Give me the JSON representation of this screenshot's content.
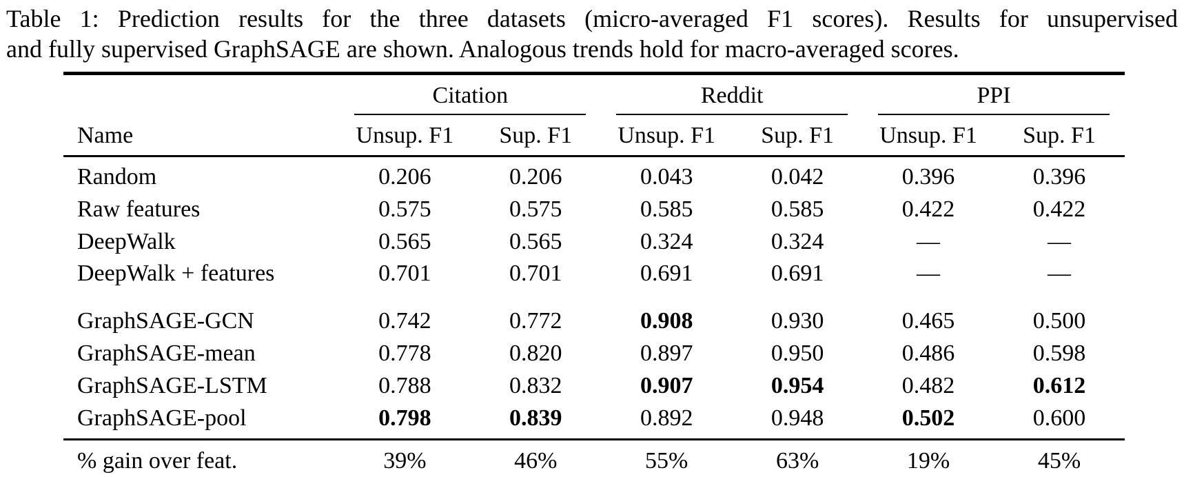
{
  "caption": {
    "line1": "Table 1: Prediction results for the three datasets (micro-averaged F1 scores). Results for unsupervised",
    "line2": "and fully supervised GraphSAGE are shown. Analogous trends hold for macro-averaged scores."
  },
  "table": {
    "name_header": "Name",
    "groups": [
      {
        "label": "Citation",
        "columns": [
          "Unsup. F1",
          "Sup. F1"
        ]
      },
      {
        "label": "Reddit",
        "columns": [
          "Unsup. F1",
          "Sup. F1"
        ]
      },
      {
        "label": "PPI",
        "columns": [
          "Unsup. F1",
          "Sup. F1"
        ]
      }
    ],
    "rows": [
      {
        "name": "Random",
        "values": [
          "0.206",
          "0.206",
          "0.043",
          "0.042",
          "0.396",
          "0.396"
        ],
        "bold": [
          false,
          false,
          false,
          false,
          false,
          false
        ]
      },
      {
        "name": "Raw features",
        "values": [
          "0.575",
          "0.575",
          "0.585",
          "0.585",
          "0.422",
          "0.422"
        ],
        "bold": [
          false,
          false,
          false,
          false,
          false,
          false
        ]
      },
      {
        "name": "DeepWalk",
        "values": [
          "0.565",
          "0.565",
          "0.324",
          "0.324",
          "—",
          "—"
        ],
        "bold": [
          false,
          false,
          false,
          false,
          false,
          false
        ]
      },
      {
        "name": "DeepWalk + features",
        "values": [
          "0.701",
          "0.701",
          "0.691",
          "0.691",
          "—",
          "—"
        ],
        "bold": [
          false,
          false,
          false,
          false,
          false,
          false
        ]
      },
      {
        "name": "GraphSAGE-GCN",
        "values": [
          "0.742",
          "0.772",
          "0.908",
          "0.930",
          "0.465",
          "0.500"
        ],
        "bold": [
          false,
          false,
          true,
          false,
          false,
          false
        ]
      },
      {
        "name": "GraphSAGE-mean",
        "values": [
          "0.778",
          "0.820",
          "0.897",
          "0.950",
          "0.486",
          "0.598"
        ],
        "bold": [
          false,
          false,
          false,
          false,
          false,
          false
        ]
      },
      {
        "name": "GraphSAGE-LSTM",
        "values": [
          "0.788",
          "0.832",
          "0.907",
          "0.954",
          "0.482",
          "0.612"
        ],
        "bold": [
          false,
          false,
          true,
          true,
          false,
          true
        ]
      },
      {
        "name": "GraphSAGE-pool",
        "values": [
          "0.798",
          "0.839",
          "0.892",
          "0.948",
          "0.502",
          "0.600"
        ],
        "bold": [
          true,
          true,
          false,
          false,
          true,
          false
        ]
      }
    ],
    "footer": {
      "name": "% gain over feat.",
      "values": [
        "39%",
        "46%",
        "55%",
        "63%",
        "19%",
        "45%"
      ]
    }
  }
}
